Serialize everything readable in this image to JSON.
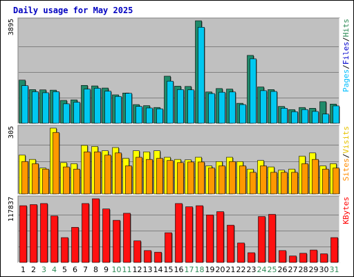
{
  "chart_data": {
    "type": "bar",
    "title": "Daily usage for May 2025",
    "days": [
      "1",
      "2",
      "3",
      "4",
      "5",
      "6",
      "7",
      "8",
      "9",
      "10",
      "11",
      "12",
      "13",
      "14",
      "15",
      "16",
      "17",
      "18",
      "19",
      "20",
      "21",
      "22",
      "23",
      "24",
      "25",
      "26",
      "27",
      "28",
      "29",
      "30",
      "31"
    ],
    "weekend_days": [
      "3",
      "4",
      "10",
      "11",
      "17",
      "18",
      "24",
      "25",
      "31"
    ],
    "panels": [
      {
        "name": "top",
        "ymax_label": "3895",
        "ylim": [
          0,
          3895
        ],
        "right_label_parts": [
          "Pages",
          "/",
          "Files",
          "/",
          "Hits"
        ],
        "series": [
          {
            "name": "Hits",
            "color": "#1f8a6a",
            "values": [
              1640,
              1280,
              1270,
              1260,
              870,
              890,
              1440,
              1420,
              1340,
              1080,
              1150,
              710,
              670,
              600,
              1790,
              1410,
              1400,
              3895,
              1190,
              1320,
              1300,
              760,
              2580,
              1380,
              1280,
              640,
              520,
              600,
              570,
              820,
              730
            ]
          },
          {
            "name": "Files",
            "color": "#00c8f0",
            "values": [
              1430,
              1200,
              1160,
              1200,
              740,
              800,
              1300,
              1330,
              1220,
              1020,
              1140,
              640,
              580,
              550,
              1600,
              1280,
              1270,
              3650,
              1130,
              1180,
              1190,
              710,
              2450,
              1240,
              1210,
              570,
              440,
              520,
              450,
              350,
              660
            ]
          }
        ]
      },
      {
        "name": "middle",
        "ymax_label": "305",
        "ylim": [
          0,
          305
        ],
        "right_label_parts": [
          "Sites",
          "/",
          "Visits"
        ],
        "series": [
          {
            "name": "Visits",
            "color": "#ffff00",
            "values": [
              180,
              160,
              120,
              305,
              145,
              140,
              225,
              220,
              200,
              215,
              165,
              200,
              195,
              200,
              170,
              160,
              158,
              170,
              130,
              150,
              170,
              150,
              115,
              155,
              125,
              110,
              115,
              175,
              190,
              130,
              140
            ]
          },
          {
            "name": "Sites",
            "color": "#ff9800",
            "values": [
              150,
              140,
              115,
              285,
              125,
              115,
              195,
              195,
              180,
              190,
              130,
              170,
              160,
              165,
              155,
              145,
              148,
              148,
              120,
              130,
              150,
              130,
              100,
              130,
              100,
              100,
              100,
              140,
              160,
              115,
              120
            ]
          }
        ]
      },
      {
        "name": "bottom",
        "ymax_label": "117837",
        "ylim": [
          0,
          117837
        ],
        "right_label_parts": [
          "KBytes"
        ],
        "series": [
          {
            "name": "KBytes",
            "color": "#ff1010",
            "values": [
              105000,
              107000,
              109000,
              86000,
              46000,
              65000,
              109000,
              117837,
              99000,
              78000,
              91000,
              40000,
              22000,
              19000,
              55000,
              109000,
              103000,
              105000,
              88000,
              94000,
              69000,
              36000,
              18000,
              85000,
              89000,
              22000,
              12000,
              17000,
              23000,
              16000,
              46000
            ]
          }
        ]
      }
    ]
  },
  "colors": {
    "page_bg": "#ffffff",
    "panel_bg": "#c0c0c0",
    "title_text": "#0000c0",
    "axis_label": "#000000",
    "weekday_label": "#000000",
    "weekend_label": "#2e8b57",
    "pages_text": "#00bfff",
    "files_text": "#0000cd",
    "hits_text": "#2e8b57",
    "sites_text": "#ff8c00",
    "visits_text": "#e6c200",
    "kbytes_text": "#ff0000",
    "separator_text": "#000000"
  }
}
